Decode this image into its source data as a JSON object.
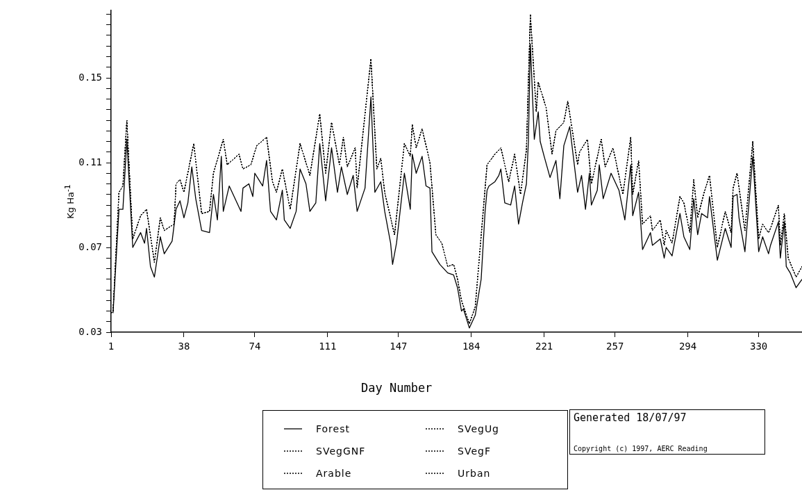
{
  "chart_data": {
    "type": "line",
    "xlabel": "Day Number",
    "ylabel": "Kg Ha$^{-1}$",
    "xlim": [
      1,
      352
    ],
    "ylim": [
      0.03,
      0.182
    ],
    "xticks": [
      1,
      38,
      74,
      111,
      147,
      184,
      221,
      257,
      294,
      330
    ],
    "yticks": [
      0.03,
      {
        "value": 0.035,
        "label": null
      },
      {
        "value": 0.04,
        "label": null
      },
      {
        "value": 0.045,
        "label": null
      },
      {
        "value": 0.05,
        "label": null
      },
      {
        "value": 0.055,
        "label": null
      },
      {
        "value": 0.06,
        "label": null
      },
      {
        "value": 0.065,
        "label": null
      },
      0.07,
      {
        "value": 0.075,
        "label": null
      },
      {
        "value": 0.08,
        "label": null
      },
      {
        "value": 0.085,
        "label": null
      },
      {
        "value": 0.09,
        "label": null
      },
      {
        "value": 0.095,
        "label": null
      },
      {
        "value": 0.1,
        "label": null
      },
      {
        "value": 0.105,
        "label": null
      },
      0.11,
      {
        "value": 0.115,
        "label": null
      },
      {
        "value": 0.12,
        "label": null
      },
      {
        "value": 0.125,
        "label": null
      },
      {
        "value": 0.13,
        "label": null
      },
      {
        "value": 0.135,
        "label": null
      },
      {
        "value": 0.14,
        "label": null
      },
      {
        "value": 0.145,
        "label": null
      },
      0.15,
      {
        "value": 0.155,
        "label": null
      },
      {
        "value": 0.16,
        "label": null
      },
      {
        "value": 0.165,
        "label": null
      },
      {
        "value": 0.17,
        "label": null
      },
      {
        "value": 0.175,
        "label": null
      },
      {
        "value": 0.18,
        "label": null
      }
    ],
    "grid": false,
    "legend": "bottom",
    "marker": "none",
    "annotations": [
      "Generated 18/07/97",
      "Copyright (c) 1997, AERC Reading"
    ],
    "series": [
      {
        "name": "Forest",
        "color": "#000000",
        "line_style": "solid",
        "x": [
          2,
          5,
          7,
          9,
          12,
          16,
          18,
          19,
          21,
          23,
          26,
          28,
          32,
          34,
          36,
          38,
          40,
          42,
          44,
          47,
          51,
          53,
          55,
          57,
          58,
          61,
          67,
          68,
          71,
          73,
          74,
          78,
          80,
          82,
          85,
          88,
          89,
          92,
          95,
          97,
          100,
          102,
          105,
          107,
          110,
          113,
          116,
          118,
          121,
          124,
          126,
          130,
          133,
          135,
          138,
          140,
          143,
          144,
          146,
          150,
          153,
          154,
          156,
          159,
          161,
          163,
          164,
          168,
          172,
          175,
          177,
          179,
          180,
          183,
          186,
          189,
          191,
          192,
          193,
          196,
          198,
          199,
          201,
          204,
          206,
          208,
          210,
          212,
          213,
          214,
          216,
          218,
          219,
          221,
          224,
          227,
          229,
          231,
          234,
          238,
          240,
          242,
          244,
          245,
          248,
          249,
          251,
          255,
          259,
          262,
          265,
          266,
          269,
          271,
          275,
          276,
          280,
          282,
          283,
          286,
          290,
          292,
          295,
          297,
          299,
          301,
          304,
          305,
          309,
          313,
          316,
          317,
          319,
          320,
          323,
          327,
          330,
          332,
          335,
          336,
          340,
          341,
          343,
          344,
          346,
          349,
          352
        ],
        "values": [
          0.039,
          0.088,
          0.088,
          0.121,
          0.07,
          0.077,
          0.072,
          0.079,
          0.061,
          0.056,
          0.075,
          0.067,
          0.073,
          0.088,
          0.092,
          0.084,
          0.091,
          0.108,
          0.093,
          0.078,
          0.077,
          0.095,
          0.083,
          0.113,
          0.087,
          0.099,
          0.087,
          0.098,
          0.1,
          0.094,
          0.105,
          0.099,
          0.111,
          0.087,
          0.083,
          0.097,
          0.083,
          0.079,
          0.087,
          0.107,
          0.1,
          0.087,
          0.091,
          0.119,
          0.092,
          0.117,
          0.096,
          0.108,
          0.095,
          0.104,
          0.087,
          0.098,
          0.141,
          0.096,
          0.101,
          0.087,
          0.072,
          0.062,
          0.072,
          0.105,
          0.088,
          0.114,
          0.105,
          0.113,
          0.099,
          0.098,
          0.068,
          0.062,
          0.058,
          0.057,
          0.051,
          0.04,
          0.041,
          0.032,
          0.038,
          0.055,
          0.087,
          0.097,
          0.099,
          0.101,
          0.104,
          0.107,
          0.091,
          0.09,
          0.099,
          0.081,
          0.091,
          0.1,
          0.12,
          0.166,
          0.121,
          0.134,
          0.12,
          0.113,
          0.103,
          0.111,
          0.093,
          0.118,
          0.127,
          0.096,
          0.104,
          0.088,
          0.105,
          0.09,
          0.097,
          0.109,
          0.093,
          0.105,
          0.097,
          0.083,
          0.109,
          0.085,
          0.096,
          0.069,
          0.077,
          0.071,
          0.074,
          0.065,
          0.07,
          0.066,
          0.086,
          0.075,
          0.069,
          0.093,
          0.076,
          0.086,
          0.084,
          0.094,
          0.064,
          0.079,
          0.07,
          0.094,
          0.095,
          0.084,
          0.068,
          0.113,
          0.068,
          0.075,
          0.067,
          0.071,
          0.082,
          0.065,
          0.082,
          0.061,
          0.058,
          0.051,
          0.055
        ]
      },
      {
        "name": "SVegUg",
        "color": "#000000",
        "line_style": "dotted",
        "x": [
          1,
          2,
          5,
          7,
          9,
          12,
          16,
          19,
          23,
          26,
          28,
          33,
          34,
          36,
          38,
          43,
          47,
          51,
          53,
          58,
          60,
          66,
          68,
          72,
          75,
          80,
          83,
          85,
          88,
          92,
          97,
          102,
          107,
          110,
          113,
          117,
          119,
          121,
          125,
          126,
          133,
          136,
          138,
          140,
          145,
          150,
          153,
          154,
          156,
          159,
          163,
          166,
          169,
          172,
          175,
          177,
          179,
          183,
          186,
          192,
          196,
          199,
          203,
          206,
          209,
          212,
          214,
          217,
          218,
          222,
          225,
          227,
          231,
          233,
          238,
          239,
          243,
          245,
          250,
          252,
          256,
          261,
          265,
          266,
          269,
          271,
          275,
          276,
          280,
          282,
          283,
          286,
          290,
          292,
          295,
          297,
          299,
          302,
          305,
          309,
          313,
          316,
          317,
          319,
          323,
          327,
          330,
          332,
          335,
          336,
          340,
          341,
          343,
          345,
          349,
          352
        ],
        "values": [
          0.039,
          0.04,
          0.096,
          0.099,
          0.13,
          0.074,
          0.085,
          0.088,
          0.063,
          0.084,
          0.078,
          0.081,
          0.1,
          0.102,
          0.096,
          0.119,
          0.086,
          0.087,
          0.105,
          0.121,
          0.109,
          0.114,
          0.107,
          0.109,
          0.118,
          0.122,
          0.101,
          0.096,
          0.107,
          0.088,
          0.119,
          0.104,
          0.133,
          0.105,
          0.129,
          0.109,
          0.122,
          0.108,
          0.117,
          0.098,
          0.159,
          0.107,
          0.112,
          0.096,
          0.076,
          0.119,
          0.113,
          0.128,
          0.117,
          0.126,
          0.11,
          0.076,
          0.072,
          0.061,
          0.062,
          0.055,
          0.045,
          0.034,
          0.042,
          0.109,
          0.114,
          0.117,
          0.101,
          0.114,
          0.095,
          0.116,
          0.18,
          0.134,
          0.148,
          0.136,
          0.114,
          0.125,
          0.129,
          0.139,
          0.109,
          0.115,
          0.121,
          0.1,
          0.121,
          0.108,
          0.117,
          0.095,
          0.122,
          0.095,
          0.111,
          0.081,
          0.085,
          0.078,
          0.083,
          0.071,
          0.078,
          0.072,
          0.094,
          0.091,
          0.077,
          0.102,
          0.084,
          0.095,
          0.104,
          0.07,
          0.087,
          0.077,
          0.098,
          0.105,
          0.078,
          0.12,
          0.074,
          0.081,
          0.077,
          0.079,
          0.09,
          0.071,
          0.086,
          0.065,
          0.056,
          0.061
        ]
      },
      {
        "name": "SVegGNF",
        "color": "#000000",
        "line_style": "dotted",
        "x": [
          1,
          2,
          5,
          7,
          9,
          12,
          16,
          19,
          23,
          26,
          28,
          33,
          34,
          36,
          38,
          43,
          47,
          51,
          53,
          58,
          60,
          66,
          68,
          72,
          75,
          80,
          83,
          85,
          88,
          92,
          97,
          102,
          107,
          110,
          113,
          117,
          119,
          121,
          125,
          126,
          133,
          136,
          138,
          140,
          145,
          150,
          153,
          154,
          156,
          159,
          163,
          166,
          169,
          172,
          175,
          177,
          179,
          183,
          186,
          192,
          196,
          199,
          203,
          206,
          209,
          212,
          214,
          217,
          218,
          222,
          225,
          227,
          231,
          233,
          238,
          239,
          243,
          245,
          250,
          252,
          256,
          261,
          265,
          266,
          269,
          271,
          275,
          276,
          280,
          282,
          283,
          286,
          290,
          292,
          295,
          297,
          299,
          302,
          305,
          309,
          313,
          316,
          317,
          319,
          323,
          327,
          330,
          332,
          335,
          336,
          340,
          341,
          343,
          345,
          349,
          352
        ],
        "values": [
          0.039,
          0.04,
          0.096,
          0.099,
          0.13,
          0.074,
          0.085,
          0.088,
          0.063,
          0.084,
          0.078,
          0.081,
          0.1,
          0.102,
          0.096,
          0.119,
          0.086,
          0.087,
          0.105,
          0.121,
          0.109,
          0.114,
          0.107,
          0.109,
          0.118,
          0.122,
          0.101,
          0.096,
          0.107,
          0.088,
          0.119,
          0.104,
          0.133,
          0.105,
          0.129,
          0.109,
          0.122,
          0.108,
          0.117,
          0.098,
          0.159,
          0.107,
          0.112,
          0.096,
          0.076,
          0.119,
          0.113,
          0.128,
          0.117,
          0.126,
          0.11,
          0.076,
          0.072,
          0.061,
          0.062,
          0.055,
          0.045,
          0.034,
          0.042,
          0.109,
          0.114,
          0.117,
          0.101,
          0.114,
          0.095,
          0.116,
          0.18,
          0.134,
          0.148,
          0.136,
          0.114,
          0.125,
          0.129,
          0.139,
          0.109,
          0.115,
          0.121,
          0.1,
          0.121,
          0.108,
          0.117,
          0.095,
          0.122,
          0.095,
          0.111,
          0.081,
          0.085,
          0.078,
          0.083,
          0.071,
          0.078,
          0.072,
          0.094,
          0.091,
          0.077,
          0.102,
          0.084,
          0.095,
          0.104,
          0.07,
          0.087,
          0.077,
          0.098,
          0.105,
          0.078,
          0.12,
          0.074,
          0.081,
          0.077,
          0.079,
          0.09,
          0.071,
          0.086,
          0.065,
          0.056,
          0.061
        ]
      },
      {
        "name": "SVegF",
        "color": "#000000",
        "line_style": "dotted",
        "x": [
          1,
          2,
          5,
          7,
          9,
          12,
          16,
          19,
          23,
          26,
          28,
          33,
          34,
          36,
          38,
          43,
          47,
          51,
          53,
          58,
          60,
          66,
          68,
          72,
          75,
          80,
          83,
          85,
          88,
          92,
          97,
          102,
          107,
          110,
          113,
          117,
          119,
          121,
          125,
          126,
          133,
          136,
          138,
          140,
          145,
          150,
          153,
          154,
          156,
          159,
          163,
          166,
          169,
          172,
          175,
          177,
          179,
          183,
          186,
          192,
          196,
          199,
          203,
          206,
          209,
          212,
          214,
          217,
          218,
          222,
          225,
          227,
          231,
          233,
          238,
          239,
          243,
          245,
          250,
          252,
          256,
          261,
          265,
          266,
          269,
          271,
          275,
          276,
          280,
          282,
          283,
          286,
          290,
          292,
          295,
          297,
          299,
          302,
          305,
          309,
          313,
          316,
          317,
          319,
          323,
          327,
          330,
          332,
          335,
          336,
          340,
          341,
          343,
          345,
          349,
          352
        ],
        "values": [
          0.039,
          0.04,
          0.096,
          0.099,
          0.13,
          0.074,
          0.085,
          0.088,
          0.063,
          0.084,
          0.078,
          0.081,
          0.1,
          0.102,
          0.096,
          0.119,
          0.086,
          0.087,
          0.105,
          0.121,
          0.109,
          0.114,
          0.107,
          0.109,
          0.118,
          0.122,
          0.101,
          0.096,
          0.107,
          0.088,
          0.119,
          0.104,
          0.133,
          0.105,
          0.129,
          0.109,
          0.122,
          0.108,
          0.117,
          0.098,
          0.159,
          0.107,
          0.112,
          0.096,
          0.076,
          0.119,
          0.113,
          0.128,
          0.117,
          0.126,
          0.11,
          0.076,
          0.072,
          0.061,
          0.062,
          0.055,
          0.045,
          0.034,
          0.042,
          0.109,
          0.114,
          0.117,
          0.101,
          0.114,
          0.095,
          0.116,
          0.18,
          0.134,
          0.148,
          0.136,
          0.114,
          0.125,
          0.129,
          0.139,
          0.109,
          0.115,
          0.121,
          0.1,
          0.121,
          0.108,
          0.117,
          0.095,
          0.122,
          0.095,
          0.111,
          0.081,
          0.085,
          0.078,
          0.083,
          0.071,
          0.078,
          0.072,
          0.094,
          0.091,
          0.077,
          0.102,
          0.084,
          0.095,
          0.104,
          0.07,
          0.087,
          0.077,
          0.098,
          0.105,
          0.078,
          0.12,
          0.074,
          0.081,
          0.077,
          0.079,
          0.09,
          0.071,
          0.086,
          0.065,
          0.056,
          0.061
        ]
      },
      {
        "name": "Arable",
        "color": "#000000",
        "line_style": "dotted",
        "x": [
          1,
          2,
          5,
          7,
          9,
          12,
          16,
          19,
          23,
          26,
          28,
          33,
          34,
          36,
          38,
          43,
          47,
          51,
          53,
          58,
          60,
          66,
          68,
          72,
          75,
          80,
          83,
          85,
          88,
          92,
          97,
          102,
          107,
          110,
          113,
          117,
          119,
          121,
          125,
          126,
          133,
          136,
          138,
          140,
          145,
          150,
          153,
          154,
          156,
          159,
          163,
          166,
          169,
          172,
          175,
          177,
          179,
          183,
          186,
          192,
          196,
          199,
          203,
          206,
          209,
          212,
          214,
          217,
          218,
          222,
          225,
          227,
          231,
          233,
          238,
          239,
          243,
          245,
          250,
          252,
          256,
          261,
          265,
          266,
          269,
          271,
          275,
          276,
          280,
          282,
          283,
          286,
          290,
          292,
          295,
          297,
          299,
          302,
          305,
          309,
          313,
          316,
          317,
          319,
          323,
          327,
          330,
          332,
          335,
          336,
          340,
          341,
          343,
          345,
          349,
          352
        ],
        "values": [
          0.039,
          0.04,
          0.096,
          0.099,
          0.13,
          0.074,
          0.085,
          0.088,
          0.063,
          0.084,
          0.078,
          0.081,
          0.1,
          0.102,
          0.096,
          0.119,
          0.086,
          0.087,
          0.105,
          0.121,
          0.109,
          0.114,
          0.107,
          0.109,
          0.118,
          0.122,
          0.101,
          0.096,
          0.107,
          0.088,
          0.119,
          0.104,
          0.133,
          0.105,
          0.129,
          0.109,
          0.122,
          0.108,
          0.117,
          0.098,
          0.159,
          0.107,
          0.112,
          0.096,
          0.076,
          0.119,
          0.113,
          0.128,
          0.117,
          0.126,
          0.11,
          0.076,
          0.072,
          0.061,
          0.062,
          0.055,
          0.045,
          0.034,
          0.042,
          0.109,
          0.114,
          0.117,
          0.101,
          0.114,
          0.095,
          0.116,
          0.18,
          0.134,
          0.148,
          0.136,
          0.114,
          0.125,
          0.129,
          0.139,
          0.109,
          0.115,
          0.121,
          0.1,
          0.121,
          0.108,
          0.117,
          0.095,
          0.122,
          0.095,
          0.111,
          0.081,
          0.085,
          0.078,
          0.083,
          0.071,
          0.078,
          0.072,
          0.094,
          0.091,
          0.077,
          0.102,
          0.084,
          0.095,
          0.104,
          0.07,
          0.087,
          0.077,
          0.098,
          0.105,
          0.078,
          0.12,
          0.074,
          0.081,
          0.077,
          0.079,
          0.09,
          0.071,
          0.086,
          0.065,
          0.056,
          0.061
        ]
      },
      {
        "name": "Urban",
        "color": "#000000",
        "line_style": "dotted",
        "x": [
          1,
          2,
          5,
          7,
          9,
          12,
          16,
          19,
          23,
          26,
          28,
          33,
          34,
          36,
          38,
          43,
          47,
          51,
          53,
          58,
          60,
          66,
          68,
          72,
          75,
          80,
          83,
          85,
          88,
          92,
          97,
          102,
          107,
          110,
          113,
          117,
          119,
          121,
          125,
          126,
          133,
          136,
          138,
          140,
          145,
          150,
          153,
          154,
          156,
          159,
          163,
          166,
          169,
          172,
          175,
          177,
          179,
          183,
          186,
          192,
          196,
          199,
          203,
          206,
          209,
          212,
          214,
          217,
          218,
          222,
          225,
          227,
          231,
          233,
          238,
          239,
          243,
          245,
          250,
          252,
          256,
          261,
          265,
          266,
          269,
          271,
          275,
          276,
          280,
          282,
          283,
          286,
          290,
          292,
          295,
          297,
          299,
          302,
          305,
          309,
          313,
          316,
          317,
          319,
          323,
          327,
          330,
          332,
          335,
          336,
          340,
          341,
          343,
          345,
          349,
          352
        ],
        "values": [
          0.039,
          0.04,
          0.096,
          0.099,
          0.13,
          0.074,
          0.085,
          0.088,
          0.063,
          0.084,
          0.078,
          0.081,
          0.1,
          0.102,
          0.096,
          0.119,
          0.086,
          0.087,
          0.105,
          0.121,
          0.109,
          0.114,
          0.107,
          0.109,
          0.118,
          0.122,
          0.101,
          0.096,
          0.107,
          0.088,
          0.119,
          0.104,
          0.133,
          0.105,
          0.129,
          0.109,
          0.122,
          0.108,
          0.117,
          0.098,
          0.159,
          0.107,
          0.112,
          0.096,
          0.076,
          0.119,
          0.113,
          0.128,
          0.117,
          0.126,
          0.11,
          0.076,
          0.072,
          0.061,
          0.062,
          0.055,
          0.045,
          0.034,
          0.042,
          0.109,
          0.114,
          0.117,
          0.101,
          0.114,
          0.095,
          0.116,
          0.18,
          0.134,
          0.148,
          0.136,
          0.114,
          0.125,
          0.129,
          0.139,
          0.109,
          0.115,
          0.121,
          0.1,
          0.121,
          0.108,
          0.117,
          0.095,
          0.122,
          0.095,
          0.111,
          0.081,
          0.085,
          0.078,
          0.083,
          0.071,
          0.078,
          0.072,
          0.094,
          0.091,
          0.077,
          0.102,
          0.084,
          0.095,
          0.104,
          0.07,
          0.087,
          0.077,
          0.098,
          0.105,
          0.078,
          0.12,
          0.074,
          0.081,
          0.077,
          0.079,
          0.09,
          0.071,
          0.086,
          0.065,
          0.056,
          0.061
        ]
      }
    ]
  }
}
